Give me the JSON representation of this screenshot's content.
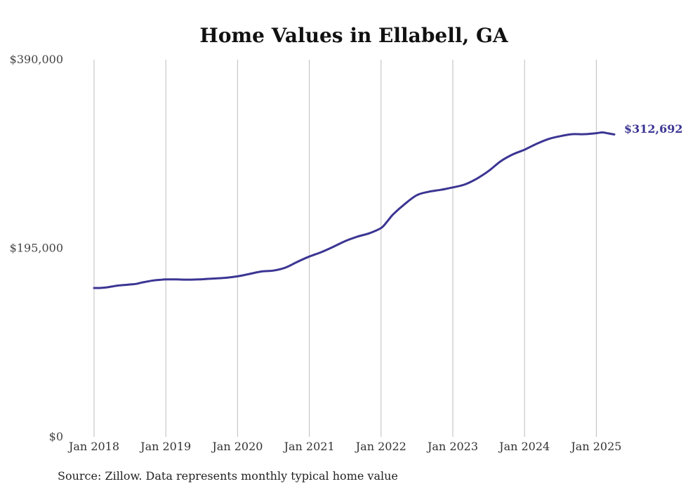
{
  "chart_data": {
    "type": "line",
    "title": "Home Values in Ellabell, GA",
    "xlabel": "",
    "ylabel": "",
    "ylim": [
      0,
      390000
    ],
    "y_ticks": [
      "$0",
      "$195,000",
      "$390,000"
    ],
    "x_tick_labels": [
      "Jan 2018",
      "Jan 2019",
      "Jan 2020",
      "Jan 2021",
      "Jan 2022",
      "Jan 2023",
      "Jan 2024",
      "Jan 2025"
    ],
    "grid": "vertical lines at each year",
    "line_color": "#3b3593",
    "end_label": "$312,692",
    "series": [
      {
        "points": [
          [
            "2018-01",
            154000
          ],
          [
            "2018-02",
            154000
          ],
          [
            "2018-03",
            154500
          ],
          [
            "2018-04",
            155500
          ],
          [
            "2018-05",
            156500
          ],
          [
            "2018-06",
            157000
          ],
          [
            "2018-07",
            157600
          ],
          [
            "2018-08",
            158200
          ],
          [
            "2018-09",
            159600
          ],
          [
            "2018-10",
            160800
          ],
          [
            "2018-11",
            161800
          ],
          [
            "2018-12",
            162400
          ],
          [
            "2019-01",
            162800
          ],
          [
            "2019-03",
            162800
          ],
          [
            "2019-05",
            162600
          ],
          [
            "2019-07",
            163000
          ],
          [
            "2019-09",
            163800
          ],
          [
            "2019-11",
            164500
          ],
          [
            "2020-01",
            166000
          ],
          [
            "2020-03",
            168500
          ],
          [
            "2020-05",
            171000
          ],
          [
            "2020-07",
            172000
          ],
          [
            "2020-09",
            175000
          ],
          [
            "2020-11",
            181000
          ],
          [
            "2021-01",
            186500
          ],
          [
            "2021-03",
            191000
          ],
          [
            "2021-05",
            196500
          ],
          [
            "2021-07",
            202500
          ],
          [
            "2021-09",
            207000
          ],
          [
            "2021-11",
            210500
          ],
          [
            "2022-01",
            216000
          ],
          [
            "2022-02",
            222500
          ],
          [
            "2022-03",
            230000
          ],
          [
            "2022-05",
            241000
          ],
          [
            "2022-07",
            250000
          ],
          [
            "2022-09",
            253500
          ],
          [
            "2022-11",
            255500
          ],
          [
            "2023-01",
            258000
          ],
          [
            "2023-03",
            261000
          ],
          [
            "2023-05",
            267000
          ],
          [
            "2023-07",
            275000
          ],
          [
            "2023-09",
            285000
          ],
          [
            "2023-11",
            292000
          ],
          [
            "2024-01",
            297000
          ],
          [
            "2024-03",
            303000
          ],
          [
            "2024-05",
            308000
          ],
          [
            "2024-07",
            311000
          ],
          [
            "2024-09",
            313000
          ],
          [
            "2024-11",
            313000
          ],
          [
            "2025-01",
            314000
          ],
          [
            "2025-02",
            314800
          ],
          [
            "2025-03",
            313800
          ],
          [
            "2025-04",
            312692
          ]
        ]
      }
    ]
  },
  "source_note": "Source: Zillow. Data represents monthly typical home value"
}
